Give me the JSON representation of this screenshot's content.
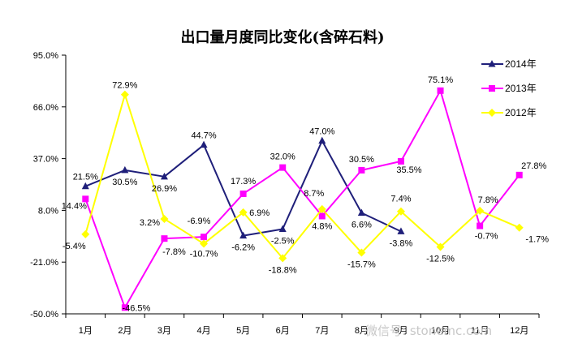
{
  "chart_data": {
    "type": "line",
    "title": "出口量月度同比变化(含碎石料)",
    "categories": [
      "1月",
      "2月",
      "3月",
      "4月",
      "5月",
      "6月",
      "7月",
      "8月",
      "9月",
      "10月",
      "11月",
      "12月"
    ],
    "ylim": [
      -50,
      95
    ],
    "yticks": [
      95,
      66,
      37,
      8,
      -21,
      -50
    ],
    "ytick_labels": [
      "95.0%",
      "66.0%",
      "37.0%",
      "8.0%",
      "-21.0%",
      "-50.0%"
    ],
    "grid": false,
    "legend_position": "top-right",
    "series": [
      {
        "name": "2014年",
        "color": "#1f1f7a",
        "marker": "triangle",
        "values": [
          21.5,
          30.5,
          26.9,
          44.7,
          -6.2,
          -2.5,
          47.0,
          6.6,
          -3.8,
          null,
          null,
          null
        ],
        "labels": [
          "21.5%",
          "30.5%",
          "26.9%",
          "44.7%",
          "-6.2%",
          "-2.5%",
          "47.0%",
          "6.6%",
          "-3.8%",
          "",
          "",
          ""
        ]
      },
      {
        "name": "2013年",
        "color": "#ff00ff",
        "marker": "square",
        "values": [
          14.4,
          -46.5,
          -7.8,
          -6.9,
          17.3,
          32.0,
          4.8,
          30.5,
          35.5,
          75.1,
          -0.7,
          27.8
        ],
        "labels": [
          "14.4%",
          "-46.5%",
          "-7.8%",
          "-6.9%",
          "17.3%",
          "32.0%",
          "4.8%",
          "30.5%",
          "35.5%",
          "75.1%",
          "-0.7%",
          "27.8%"
        ]
      },
      {
        "name": "2012年",
        "color": "#ffff00",
        "marker": "diamond",
        "values": [
          -5.4,
          72.9,
          3.2,
          -10.7,
          6.9,
          -18.8,
          8.7,
          -15.7,
          7.4,
          -12.5,
          7.8,
          -1.7
        ],
        "labels": [
          "-5.4%",
          "72.9%",
          "3.2%",
          "-10.7%",
          "6.9%",
          "-18.8%",
          "8.7%",
          "-15.7%",
          "7.4%",
          "-12.5%",
          "7.8%",
          "-1.7%"
        ]
      }
    ]
  },
  "watermark": "微信号: stonemc.com"
}
